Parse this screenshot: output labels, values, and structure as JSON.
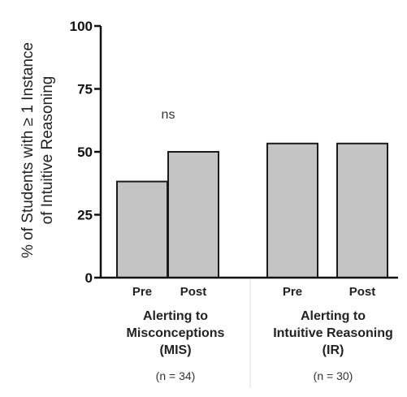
{
  "chart_data": {
    "type": "bar",
    "ylabel_lines": [
      "% of Students with ≥ 1 Instance",
      "of Intuitive Reasoning"
    ],
    "ylim": [
      0,
      100
    ],
    "yticks": [
      "0",
      "25",
      "50",
      "75",
      "100"
    ],
    "ytick_values": [
      0,
      25,
      50,
      75,
      100
    ],
    "categories": [
      "Pre",
      "Post",
      "Pre",
      "Post"
    ],
    "values": [
      38.2,
      50.0,
      53.3,
      53.3
    ],
    "groups": [
      {
        "label_lines": [
          "Alerting to",
          "Misconceptions",
          "(MIS)"
        ],
        "n": "(n = 34)"
      },
      {
        "label_lines": [
          "Alerting to",
          "Intuitive Reasoning",
          "(IR)"
        ],
        "n": "(n = 30)"
      }
    ],
    "annotation": "ns",
    "colors": {
      "bar_fill": "#c4c4c4",
      "bar_stroke": "#1a1a1a",
      "axis": "#111111"
    }
  }
}
